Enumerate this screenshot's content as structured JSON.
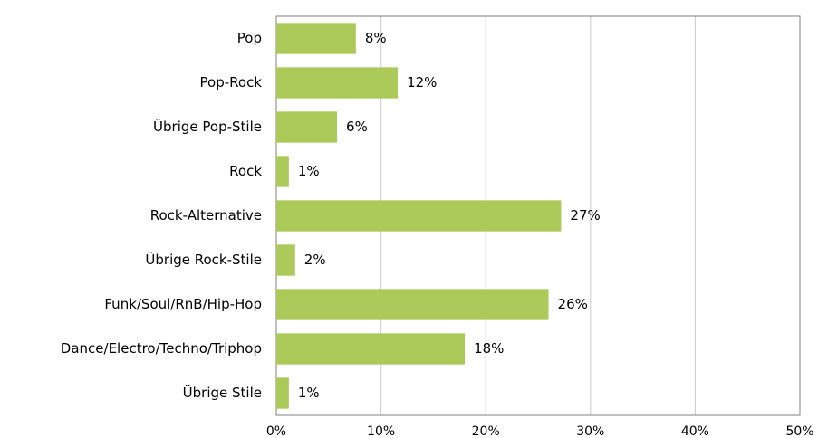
{
  "chart_data": {
    "type": "bar",
    "orientation": "horizontal",
    "categories": [
      "Pop",
      "Pop-Rock",
      "Übrige Pop-Stile",
      "Rock",
      "Rock-Alternative",
      "Übrige Rock-Stile",
      "Funk/Soul/RnB/Hip-Hop",
      "Dance/Electro/Techno/Triphop",
      "Übrige Stile"
    ],
    "values": [
      7.6,
      11.6,
      5.8,
      1.2,
      27.2,
      1.8,
      26.0,
      18.0,
      1.2
    ],
    "value_labels": [
      "8%",
      "12%",
      "6%",
      "1%",
      "27%",
      "2%",
      "26%",
      "18%",
      "1%"
    ],
    "color": "#acca5a",
    "xlim": [
      0,
      50
    ],
    "xticks": [
      {
        "value": 0,
        "label": "0%"
      },
      {
        "value": 10,
        "label": "10%"
      },
      {
        "value": 20,
        "label": "20%"
      },
      {
        "value": 30,
        "label": "30%"
      },
      {
        "value": 40,
        "label": "40%"
      },
      {
        "value": 50,
        "label": "50%"
      }
    ],
    "grid": true
  }
}
